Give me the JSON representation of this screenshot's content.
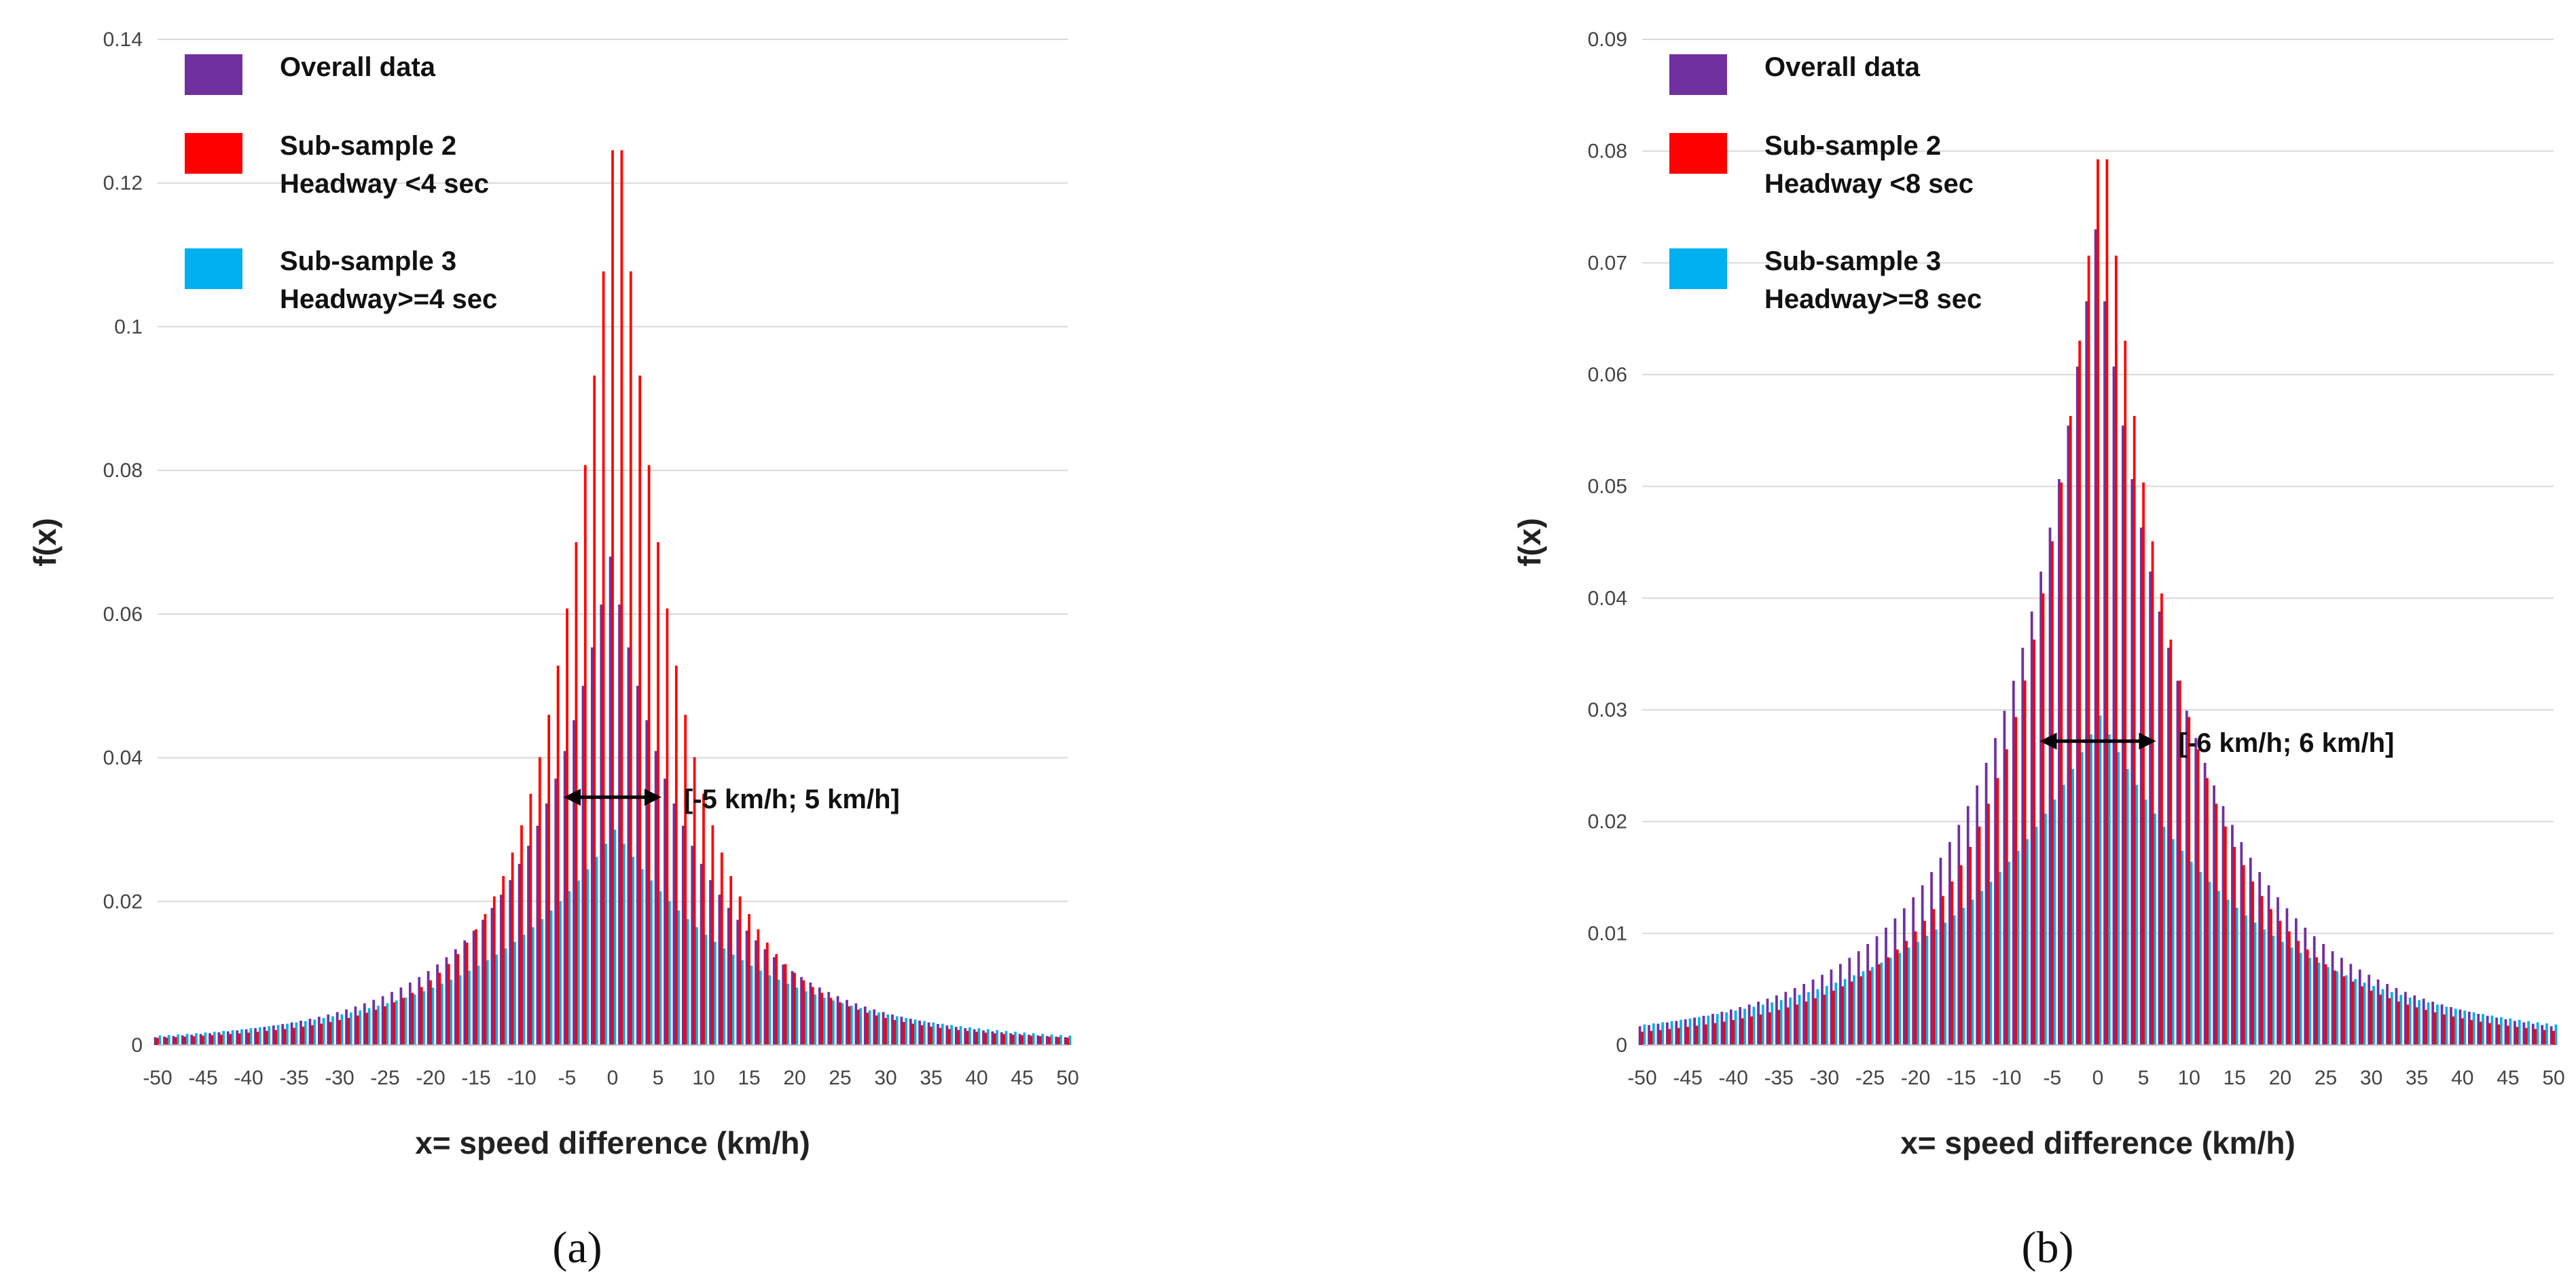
{
  "chart_data": [
    {
      "type": "bar",
      "panel_label": "(a)",
      "xlabel": "x= speed difference (km/h)",
      "ylabel": "f(x)",
      "xlim": [
        -50,
        50
      ],
      "ylim": [
        0,
        0.14
      ],
      "yticks": [
        "0",
        "0.02",
        "0.04",
        "0.06",
        "0.08",
        "0.1",
        "0.12",
        "0.14"
      ],
      "xticks": [
        "-50",
        "-45",
        "-40",
        "-35",
        "-30",
        "-25",
        "-20",
        "-15",
        "-10",
        "-5",
        "0",
        "5",
        "10",
        "15",
        "20",
        "25",
        "30",
        "35",
        "40",
        "45",
        "50"
      ],
      "grid": true,
      "legend_position": "top-left",
      "series": [
        {
          "name": "Overall data",
          "color": "#7030a0",
          "model": {
            "peak": 0.068,
            "peak_x": 0,
            "outer_scale": 8,
            "tail_ratio": 0.34,
            "tail_scale": 16,
            "floor": 0.0008
          }
        },
        {
          "name": "Sub-sample 2\nHeadway <4 sec",
          "color": "#ff0000",
          "model": {
            "peak": 0.134,
            "peak_x": 0.5,
            "outer_scale": 6.5,
            "tail_ratio": 0.07,
            "tail_scale": 22,
            "floor": 0.0003
          }
        },
        {
          "name": "Sub-sample 3\nHeadway>=4 sec",
          "color": "#00b0f0",
          "model": {
            "peak": 0.03,
            "peak_x": 0,
            "outer_scale": 14,
            "tail_ratio": 0.1,
            "tail_scale": 30,
            "floor": 0.0008
          }
        }
      ],
      "annotation": {
        "text": "[-5 km/h; 5 km/h]",
        "x_from": -5,
        "x_to": 5,
        "y": 0.0345
      }
    },
    {
      "type": "bar",
      "panel_label": "(b)",
      "xlabel": "x= speed difference (km/h)",
      "ylabel": "f(x)",
      "xlim": [
        -50,
        50
      ],
      "ylim": [
        0,
        0.09
      ],
      "yticks": [
        "0",
        "0.01",
        "0.02",
        "0.03",
        "0.04",
        "0.05",
        "0.06",
        "0.07",
        "0.08",
        "0.09"
      ],
      "xticks": [
        "-50",
        "-45",
        "-40",
        "-35",
        "-30",
        "-25",
        "-20",
        "-15",
        "-10",
        "-5",
        "0",
        "5",
        "10",
        "15",
        "20",
        "25",
        "30",
        "35",
        "40",
        "45",
        "50"
      ],
      "grid": true,
      "legend_position": "top-left",
      "series": [
        {
          "name": "Overall data",
          "color": "#7030a0",
          "model": {
            "peak": 0.073,
            "peak_x": 0,
            "outer_scale": 9,
            "tail_ratio": 0.33,
            "tail_scale": 18,
            "floor": 0.0007
          }
        },
        {
          "name": "Sub-sample 2\nHeadway <8 sec",
          "color": "#ff0000",
          "model": {
            "peak": 0.084,
            "peak_x": 0.5,
            "outer_scale": 7.5,
            "tail_ratio": 0.22,
            "tail_scale": 18,
            "floor": 0.0005
          }
        },
        {
          "name": "Sub-sample 3\nHeadway>=8 sec",
          "color": "#00b0f0",
          "model": {
            "peak": 0.0295,
            "peak_x": 0,
            "outer_scale": 16,
            "tail_ratio": 0.1,
            "tail_scale": 34,
            "floor": 0.0007
          }
        }
      ],
      "annotation": {
        "text": "[-6 km/h; 6 km/h]",
        "x_from": -6,
        "x_to": 6,
        "y": 0.0272
      }
    }
  ]
}
